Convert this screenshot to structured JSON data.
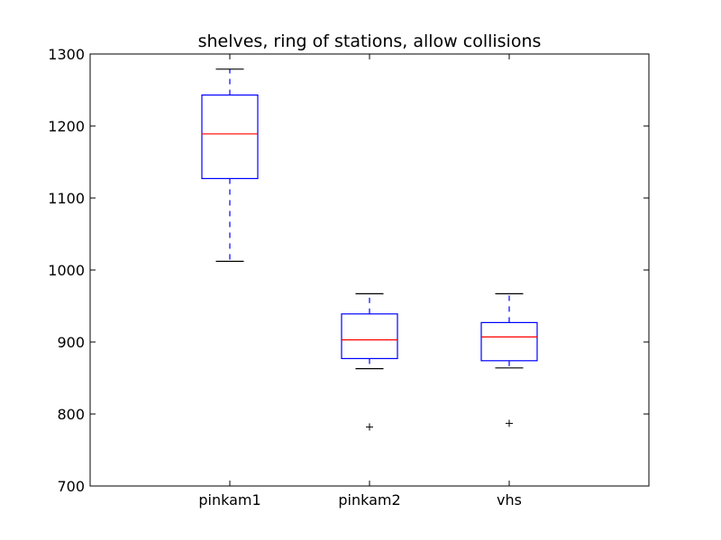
{
  "chart_data": {
    "type": "box",
    "title": "shelves, ring of stations, allow collisions",
    "xlabel": "",
    "ylabel": "",
    "ylim": [
      700,
      1300
    ],
    "yticks": [
      700,
      800,
      900,
      1000,
      1100,
      1200,
      1300
    ],
    "grid": false,
    "categories": [
      "pinkam1",
      "pinkam2",
      "vhs"
    ],
    "boxes": [
      {
        "category": "pinkam1",
        "whisker_low": 1012,
        "q1": 1127,
        "median": 1189,
        "q3": 1243,
        "whisker_high": 1279,
        "outliers": []
      },
      {
        "category": "pinkam2",
        "whisker_low": 863,
        "q1": 877,
        "median": 903,
        "q3": 939,
        "whisker_high": 967,
        "outliers": [
          782
        ]
      },
      {
        "category": "vhs",
        "whisker_low": 864,
        "q1": 874,
        "median": 907,
        "q3": 927,
        "whisker_high": 967,
        "outliers": [
          787
        ]
      }
    ],
    "colors": {
      "box": "#0000ff",
      "median": "#ff0000",
      "whisker": "#0000ff",
      "cap": "#000000",
      "flier": "#000000"
    }
  }
}
